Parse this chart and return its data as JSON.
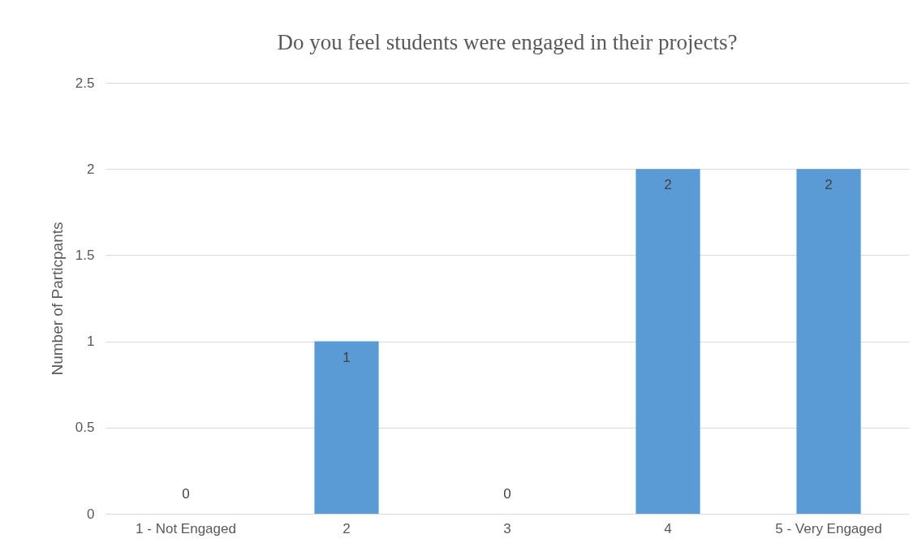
{
  "chart_data": {
    "type": "bar",
    "title": "Do you feel students were engaged in their projects?",
    "ylabel": "Number of Particpants",
    "categories": [
      "1 - Not Engaged",
      "2",
      "3",
      "4",
      "5 - Very Engaged"
    ],
    "values": [
      0,
      1,
      0,
      2,
      2
    ],
    "color": "#5b9bd5",
    "ylim": [
      0,
      2.5
    ],
    "yticks": [
      0,
      0.5,
      1,
      1.5,
      2,
      2.5
    ],
    "grid": "y",
    "data_labels": true
  }
}
